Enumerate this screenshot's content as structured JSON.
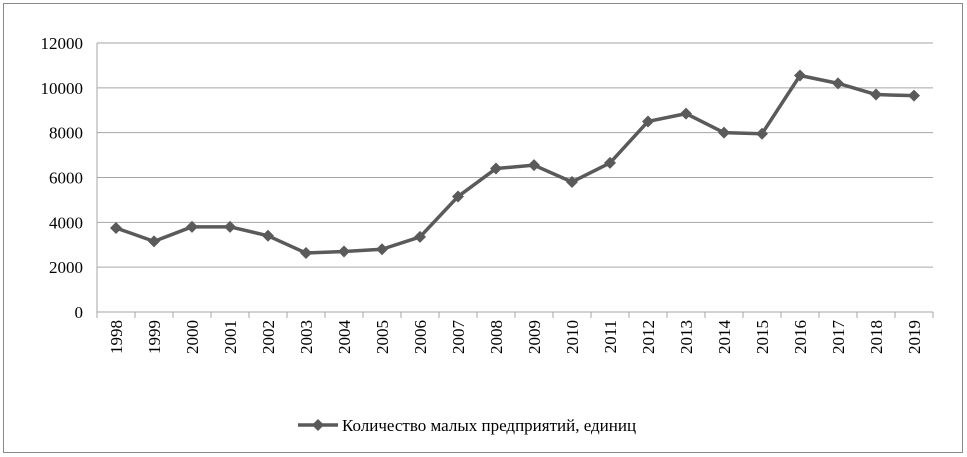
{
  "chart_data": {
    "type": "line",
    "categories": [
      "1998",
      "1999",
      "2000",
      "2001",
      "2002",
      "2003",
      "2004",
      "2005",
      "2006",
      "2007",
      "2008",
      "2009",
      "2010",
      "2011",
      "2012",
      "2013",
      "2014",
      "2015",
      "2016",
      "2017",
      "2018",
      "2019"
    ],
    "series": [
      {
        "name": "Количество малых предприятий, единиц",
        "color": "#5a5a5a",
        "values": [
          3750,
          3150,
          3800,
          3800,
          3400,
          2630,
          2700,
          2800,
          3350,
          5150,
          6400,
          6550,
          5800,
          6650,
          8500,
          8850,
          8000,
          7950,
          10550,
          10200,
          9700,
          9650
        ]
      }
    ],
    "ylim": [
      0,
      12000
    ],
    "yticks": [
      0,
      2000,
      4000,
      6000,
      8000,
      10000,
      12000
    ],
    "grid": true,
    "legend": "bottom"
  }
}
